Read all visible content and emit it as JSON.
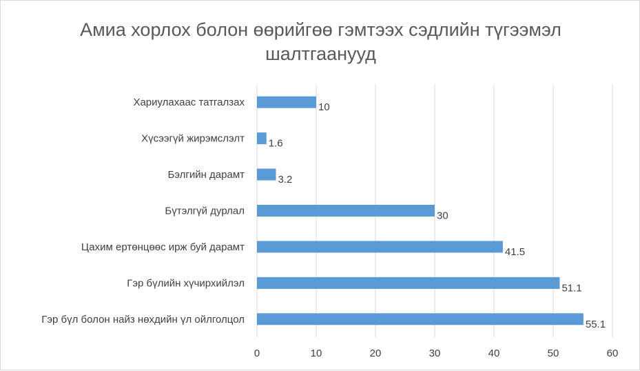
{
  "chart_data": {
    "type": "bar",
    "orientation": "horizontal",
    "title_lines": [
      "Амиа хорлох болон өөрийгөө гэмтээх сэдлийн түгээмэл",
      "шалтгаанууд"
    ],
    "categories": [
      "Хариулахаас татгалзах",
      "Хүсээгүй жирэмслэлт",
      "Бэлгийн дарамт",
      "Бүтэлгүй дурлал",
      "Цахим ертөнцөөс ирж буй дарамт",
      "Гэр бүлийн хүчирхийлэл",
      "Гэр бүл болон найз нөхдийн үл ойлголцол"
    ],
    "values": [
      10,
      1.6,
      3.2,
      30,
      41.5,
      51.1,
      55.1
    ],
    "data_labels": [
      "10",
      "1.6",
      "3.2",
      "30",
      "41.5",
      "51.1",
      "55.1"
    ],
    "xlim": [
      0,
      60
    ],
    "xticks": [
      0,
      10,
      20,
      30,
      40,
      50,
      60
    ],
    "xtick_labels": [
      "0",
      "10",
      "20",
      "30",
      "40",
      "50",
      "60"
    ],
    "grid": "vertical",
    "legend": "none",
    "colors": {
      "bar": "#5b9bd5",
      "grid": "#d9d9d9",
      "text": "#404040",
      "title": "#595959"
    }
  }
}
